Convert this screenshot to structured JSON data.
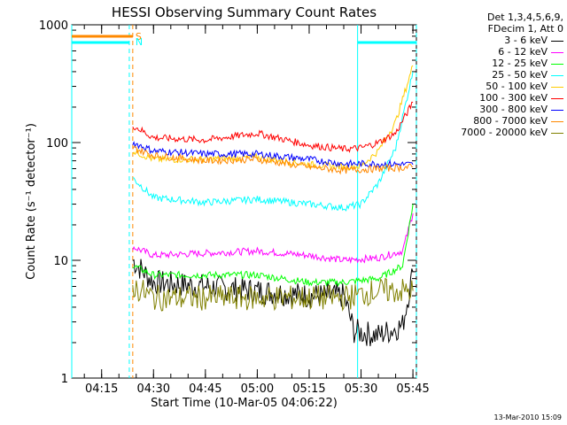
{
  "chart_data": {
    "type": "line",
    "title": "HESSI Observing Summary Count Rates",
    "ylabel": "Count Rate (s⁻¹ detector⁻¹)",
    "xlabel": "Start Time (10-Mar-05 04:06:22)",
    "y_scale": "log",
    "ylim": [
      1,
      1000
    ],
    "xlim": [
      "04:06:22",
      "05:46:00"
    ],
    "x_ticks": [
      "04:15",
      "04:30",
      "04:45",
      "05:00",
      "05:15",
      "05:30",
      "05:45"
    ],
    "y_ticks": [
      "1",
      "10",
      "100",
      "1000"
    ],
    "legend_header": [
      "Det 1,3,4,5,6,9,",
      "FDecim 1, Att 0"
    ],
    "series": [
      {
        "name": "3 - 6 keV",
        "color": "#000000",
        "times": [
          "04:24",
          "04:30",
          "04:45",
          "05:00",
          "05:15",
          "05:25",
          "05:28",
          "05:35",
          "05:42",
          "05:45"
        ],
        "values": [
          10,
          6.5,
          6,
          5.5,
          5,
          5,
          2.5,
          2.3,
          2.8,
          8
        ]
      },
      {
        "name": "6 - 12 keV",
        "color": "#ff00ff",
        "times": [
          "04:24",
          "04:30",
          "04:45",
          "05:00",
          "05:15",
          "05:25",
          "05:35",
          "05:42",
          "05:45"
        ],
        "values": [
          13,
          11,
          11.5,
          12,
          11,
          10,
          10.5,
          12,
          25
        ]
      },
      {
        "name": "12 - 25 keV",
        "color": "#00ff00",
        "times": [
          "04:24",
          "04:30",
          "04:45",
          "05:00",
          "05:15",
          "05:25",
          "05:35",
          "05:42",
          "05:45"
        ],
        "values": [
          9,
          7.5,
          7.5,
          7.5,
          6.5,
          6.5,
          7,
          9,
          30
        ]
      },
      {
        "name": "25 - 50 keV",
        "color": "#00ffff",
        "times": [
          "04:24",
          "04:30",
          "04:45",
          "05:00",
          "05:15",
          "05:25",
          "05:30",
          "05:35",
          "05:40",
          "05:45"
        ],
        "values": [
          50,
          34,
          31,
          33,
          30,
          28,
          30,
          45,
          90,
          400
        ]
      },
      {
        "name": "50 - 100 keV",
        "color": "#ffcc00",
        "times": [
          "04:24",
          "04:30",
          "04:45",
          "05:00",
          "05:15",
          "05:25",
          "05:30",
          "05:35",
          "05:40",
          "05:45"
        ],
        "values": [
          85,
          72,
          72,
          75,
          65,
          62,
          63,
          85,
          150,
          450
        ]
      },
      {
        "name": "100 - 300 keV",
        "color": "#ff0000",
        "times": [
          "04:24",
          "04:30",
          "04:45",
          "05:00",
          "05:15",
          "05:25",
          "05:30",
          "05:35",
          "05:40",
          "05:45"
        ],
        "values": [
          140,
          110,
          105,
          120,
          95,
          88,
          90,
          100,
          120,
          220
        ]
      },
      {
        "name": "300 - 800 keV",
        "color": "#0000ff",
        "times": [
          "04:24",
          "04:30",
          "04:45",
          "05:00",
          "05:15",
          "05:25",
          "05:35",
          "05:45"
        ],
        "values": [
          100,
          85,
          80,
          80,
          72,
          66,
          66,
          65
        ]
      },
      {
        "name": "800 - 7000 keV",
        "color": "#ff8800",
        "times": [
          "04:24",
          "04:30",
          "04:45",
          "05:00",
          "05:15",
          "05:25",
          "05:35",
          "05:45"
        ],
        "values": [
          90,
          78,
          70,
          72,
          62,
          58,
          60,
          62
        ]
      },
      {
        "name": "7000 - 20000 keV",
        "color": "#808000",
        "times": [
          "04:24",
          "04:30",
          "04:45",
          "05:00",
          "05:15",
          "05:25",
          "05:35",
          "05:45"
        ],
        "values": [
          6,
          4.8,
          4.8,
          4.8,
          4.8,
          4.8,
          5.5,
          5.5
        ]
      }
    ],
    "annotations": [
      {
        "label": "S",
        "color": "#ff8800",
        "time": "04:24"
      },
      {
        "label": "N",
        "color": "#00ffff",
        "time": "04:24"
      }
    ],
    "saa_intervals": [
      [
        "04:06:22",
        "04:23"
      ],
      [
        "05:29",
        "05:46"
      ]
    ]
  },
  "timestamp": "13-Mar-2010 15:09"
}
